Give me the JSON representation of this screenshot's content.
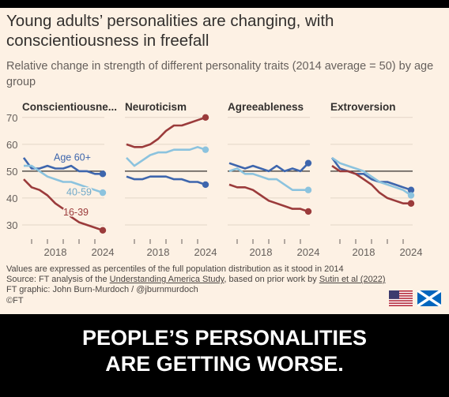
{
  "title": "Young adults’ personalities are changing, with conscientiousness in freefall",
  "subtitle": "Relative change in strength of different personality traits (2014 average = 50) by age group",
  "notes": {
    "line1": "Values are expressed as percentiles of the full population distribution as it stood in 2014",
    "line2_prefix": "Source: FT analysis of the ",
    "line2_link1": "Understanding America Study",
    "line2_mid": ", based on prior work by ",
    "line2_link2": "Sutin et al (2022)",
    "line3": "FT graphic: John Burn-Murdoch / @jburnmurdoch",
    "line4": "©FT"
  },
  "caption": {
    "line1": "PEOPLE’S PERSONALITIES",
    "line2": "ARE GETTING WORSE."
  },
  "flags": [
    "us-flag",
    "scotland-flag"
  ],
  "colors": {
    "background": "#fdf1e4",
    "age60plus": "#3e66ad",
    "age40_59": "#8cc3de",
    "age16_39": "#9b3b3b",
    "baseline": "#33302e",
    "grid": "#e3d6c8"
  },
  "chart_data": {
    "type": "line",
    "ylim": [
      25,
      72
    ],
    "yticks": [
      30,
      40,
      50,
      60,
      70
    ],
    "xlim": [
      2014,
      2024
    ],
    "xtick_labels": [
      2018,
      2024
    ],
    "baseline": 50,
    "series_labels": {
      "age60plus": "Age 60+",
      "age40_59": "40-59",
      "age16_39": "16-39"
    },
    "panels": [
      {
        "name": "Conscientiousne...",
        "series": [
          {
            "name": "Age 60+",
            "x": [
              2014,
              2015,
              2016,
              2017,
              2018,
              2019,
              2020,
              2021,
              2022,
              2023,
              2024
            ],
            "values": [
              55,
              51,
              51,
              52,
              51,
              51,
              52,
              50,
              50,
              49,
              49
            ]
          },
          {
            "name": "40-59",
            "x": [
              2014,
              2015,
              2016,
              2017,
              2018,
              2019,
              2020,
              2021,
              2022,
              2023,
              2024
            ],
            "values": [
              52,
              52,
              50,
              48,
              47,
              46,
              46,
              45,
              44,
              43,
              42
            ]
          },
          {
            "name": "16-39",
            "x": [
              2014,
              2015,
              2016,
              2017,
              2018,
              2019,
              2020,
              2021,
              2022,
              2023,
              2024
            ],
            "values": [
              47,
              44,
              43,
              41,
              38,
              36,
              33,
              31,
              30,
              29,
              28
            ]
          }
        ]
      },
      {
        "name": "Neuroticism",
        "series": [
          {
            "name": "Age 60+",
            "x": [
              2014,
              2015,
              2016,
              2017,
              2018,
              2019,
              2020,
              2021,
              2022,
              2023,
              2024
            ],
            "values": [
              48,
              47,
              47,
              48,
              48,
              48,
              47,
              47,
              46,
              46,
              45
            ]
          },
          {
            "name": "40-59",
            "x": [
              2014,
              2015,
              2016,
              2017,
              2018,
              2019,
              2020,
              2021,
              2022,
              2023,
              2024
            ],
            "values": [
              55,
              52,
              54,
              56,
              57,
              57,
              58,
              58,
              58,
              59,
              58
            ]
          },
          {
            "name": "16-39",
            "x": [
              2014,
              2015,
              2016,
              2017,
              2018,
              2019,
              2020,
              2021,
              2022,
              2023,
              2024
            ],
            "values": [
              60,
              59,
              59,
              60,
              62,
              65,
              67,
              67,
              68,
              69,
              70
            ]
          }
        ]
      },
      {
        "name": "Agreeableness",
        "series": [
          {
            "name": "Age 60+",
            "x": [
              2014,
              2015,
              2016,
              2017,
              2018,
              2019,
              2020,
              2021,
              2022,
              2023,
              2024
            ],
            "values": [
              53,
              52,
              51,
              52,
              51,
              50,
              52,
              50,
              51,
              50,
              53
            ]
          },
          {
            "name": "40-59",
            "x": [
              2014,
              2015,
              2016,
              2017,
              2018,
              2019,
              2020,
              2021,
              2022,
              2023,
              2024
            ],
            "values": [
              50,
              51,
              49,
              49,
              48,
              47,
              47,
              45,
              43,
              43,
              43
            ]
          },
          {
            "name": "16-39",
            "x": [
              2014,
              2015,
              2016,
              2017,
              2018,
              2019,
              2020,
              2021,
              2022,
              2023,
              2024
            ],
            "values": [
              45,
              44,
              44,
              43,
              41,
              39,
              38,
              37,
              36,
              36,
              35
            ]
          }
        ]
      },
      {
        "name": "Extroversion",
        "series": [
          {
            "name": "Age 60+",
            "x": [
              2014,
              2015,
              2016,
              2017,
              2018,
              2019,
              2020,
              2021,
              2022,
              2023,
              2024
            ],
            "values": [
              55,
              51,
              50,
              49,
              49,
              47,
              46,
              46,
              45,
              44,
              43
            ]
          },
          {
            "name": "40-59",
            "x": [
              2014,
              2015,
              2016,
              2017,
              2018,
              2019,
              2020,
              2021,
              2022,
              2023,
              2024
            ],
            "values": [
              55,
              53,
              52,
              51,
              50,
              48,
              46,
              45,
              44,
              43,
              41
            ]
          },
          {
            "name": "16-39",
            "x": [
              2014,
              2015,
              2016,
              2017,
              2018,
              2019,
              2020,
              2021,
              2022,
              2023,
              2024
            ],
            "values": [
              52,
              50,
              50,
              49,
              47,
              45,
              42,
              40,
              39,
              38,
              38
            ]
          }
        ]
      }
    ]
  }
}
